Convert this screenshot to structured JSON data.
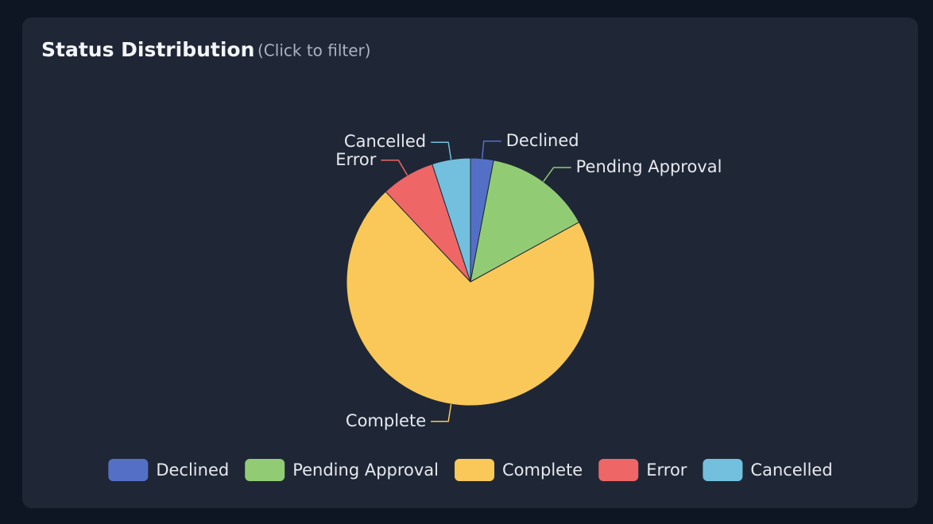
{
  "chart_data": {
    "type": "pie",
    "title": "Status Distribution",
    "subtitle": "(Click to filter)",
    "categories": [
      "Declined",
      "Pending Approval",
      "Complete",
      "Error",
      "Cancelled"
    ],
    "values": [
      3,
      14,
      71,
      7,
      5
    ],
    "colors": [
      "#5470c6",
      "#91cc75",
      "#fac858",
      "#ee6666",
      "#73c0de"
    ],
    "legend": "bottom"
  }
}
